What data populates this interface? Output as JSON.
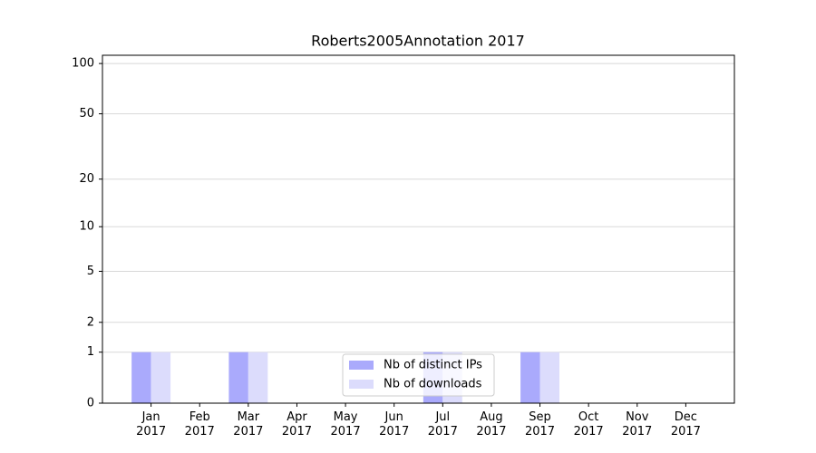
{
  "chart_data": {
    "type": "bar",
    "title": "Roberts2005Annotation 2017",
    "categories": [
      "Jan\n2017",
      "Feb\n2017",
      "Mar\n2017",
      "Apr\n2017",
      "May\n2017",
      "Jun\n2017",
      "Jul\n2017",
      "Aug\n2017",
      "Sep\n2017",
      "Oct\n2017",
      "Nov\n2017",
      "Dec\n2017"
    ],
    "series": [
      {
        "name": "Nb of distinct IPs",
        "color": "#aaaafc",
        "values": [
          1,
          0,
          1,
          0,
          0,
          0,
          1,
          0,
          1,
          0,
          0,
          0
        ]
      },
      {
        "name": "Nb of downloads",
        "color": "#dcdcfc",
        "values": [
          1,
          0,
          1,
          0,
          0,
          0,
          1,
          0,
          1,
          0,
          0,
          0
        ]
      }
    ],
    "yscale": "log1p",
    "ylim": [
      0,
      112
    ],
    "yticks": [
      0,
      1,
      2,
      5,
      10,
      20,
      50,
      100
    ],
    "grid": true,
    "legend": "lower center"
  }
}
